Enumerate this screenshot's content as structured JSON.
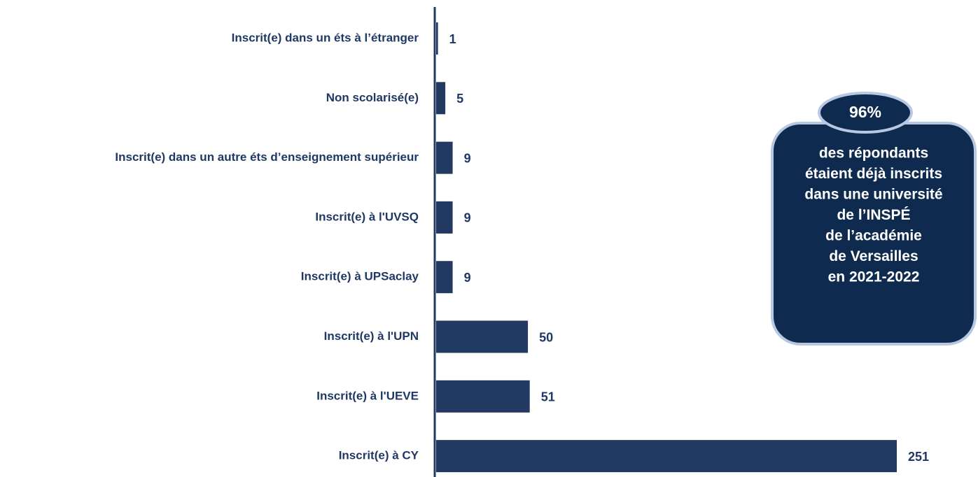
{
  "chart_data": {
    "type": "barh",
    "categories": [
      "Inscrit(e) dans un éts à l’étranger",
      "Non scolarisé(e)",
      "Inscrit(e) dans un autre éts d’enseignement supérieur",
      "Inscrit(e) à l'UVSQ",
      "Inscrit(e) à UPSaclay",
      "Inscrit(e) à l'UPN",
      "Inscrit(e) à l'UEVE",
      "Inscrit(e) à CY"
    ],
    "values": [
      1,
      5,
      9,
      9,
      9,
      50,
      51,
      251
    ],
    "color": "#223a62",
    "annotation": {
      "highlight": "96%",
      "lines": [
        "des répondants",
        "étaient déjà inscrits",
        "dans une université",
        "de l’INSPÉ",
        "de l’académie",
        "de Versailles",
        "en 2021-2022"
      ]
    }
  }
}
